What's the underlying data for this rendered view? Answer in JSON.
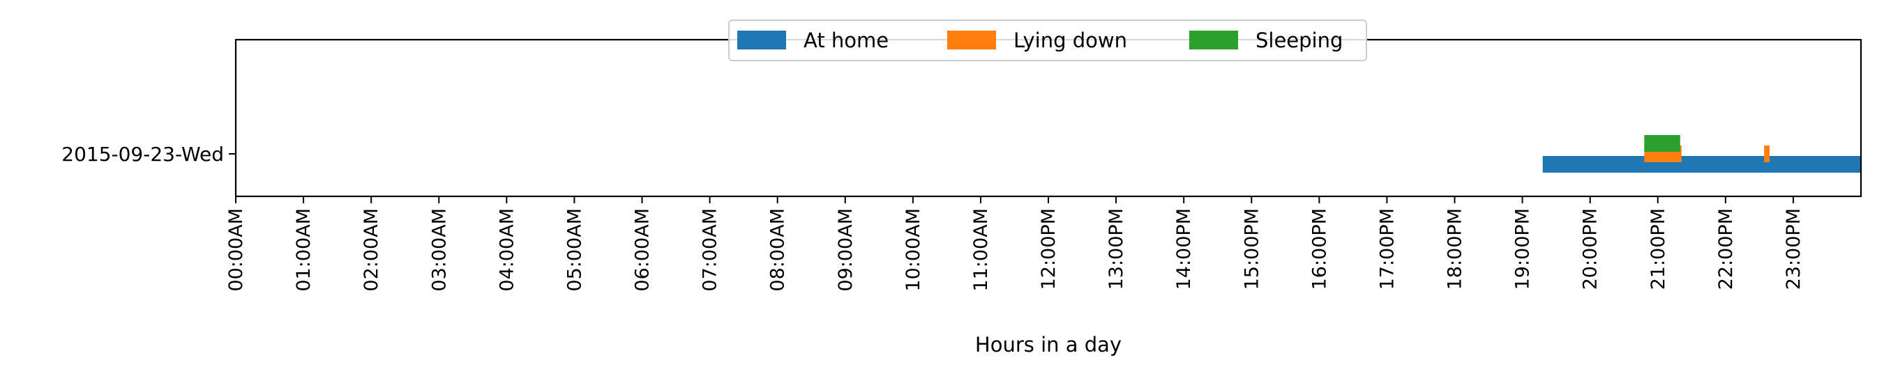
{
  "chart_data": {
    "type": "bar",
    "orientation": "horizontal-timeline",
    "title": "",
    "xlabel": "Hours in a day",
    "ylabel": "",
    "xlim": [
      0,
      24
    ],
    "categories": [
      "2015-09-23-Wed"
    ],
    "x_ticks": [
      {
        "value": 0,
        "label": "00:00AM"
      },
      {
        "value": 1,
        "label": "01:00AM"
      },
      {
        "value": 2,
        "label": "02:00AM"
      },
      {
        "value": 3,
        "label": "03:00AM"
      },
      {
        "value": 4,
        "label": "04:00AM"
      },
      {
        "value": 5,
        "label": "05:00AM"
      },
      {
        "value": 6,
        "label": "06:00AM"
      },
      {
        "value": 7,
        "label": "07:00AM"
      },
      {
        "value": 8,
        "label": "08:00AM"
      },
      {
        "value": 9,
        "label": "09:00AM"
      },
      {
        "value": 10,
        "label": "10:00AM"
      },
      {
        "value": 11,
        "label": "11:00AM"
      },
      {
        "value": 12,
        "label": "12:00PM"
      },
      {
        "value": 13,
        "label": "13:00PM"
      },
      {
        "value": 14,
        "label": "14:00PM"
      },
      {
        "value": 15,
        "label": "15:00PM"
      },
      {
        "value": 16,
        "label": "16:00PM"
      },
      {
        "value": 17,
        "label": "17:00PM"
      },
      {
        "value": 18,
        "label": "18:00PM"
      },
      {
        "value": 19,
        "label": "19:00PM"
      },
      {
        "value": 20,
        "label": "20:00PM"
      },
      {
        "value": 21,
        "label": "21:00PM"
      },
      {
        "value": 22,
        "label": "22:00PM"
      },
      {
        "value": 23,
        "label": "23:00PM"
      }
    ],
    "legend": {
      "placement": "top-center"
    },
    "grid": false,
    "series": [
      {
        "name": "At home",
        "color": "#1f77b4",
        "lane": 0,
        "intervals": [
          {
            "category": "2015-09-23-Wed",
            "start": 19.3,
            "end": 24.0
          }
        ]
      },
      {
        "name": "Lying down",
        "color": "#ff7f0e",
        "lane": 1,
        "intervals": [
          {
            "category": "2015-09-23-Wed",
            "start": 20.8,
            "end": 21.35
          },
          {
            "category": "2015-09-23-Wed",
            "start": 22.57,
            "end": 22.65
          }
        ]
      },
      {
        "name": "Sleeping",
        "color": "#2ca02c",
        "lane": 2,
        "intervals": [
          {
            "category": "2015-09-23-Wed",
            "start": 20.8,
            "end": 21.33
          }
        ]
      }
    ]
  }
}
